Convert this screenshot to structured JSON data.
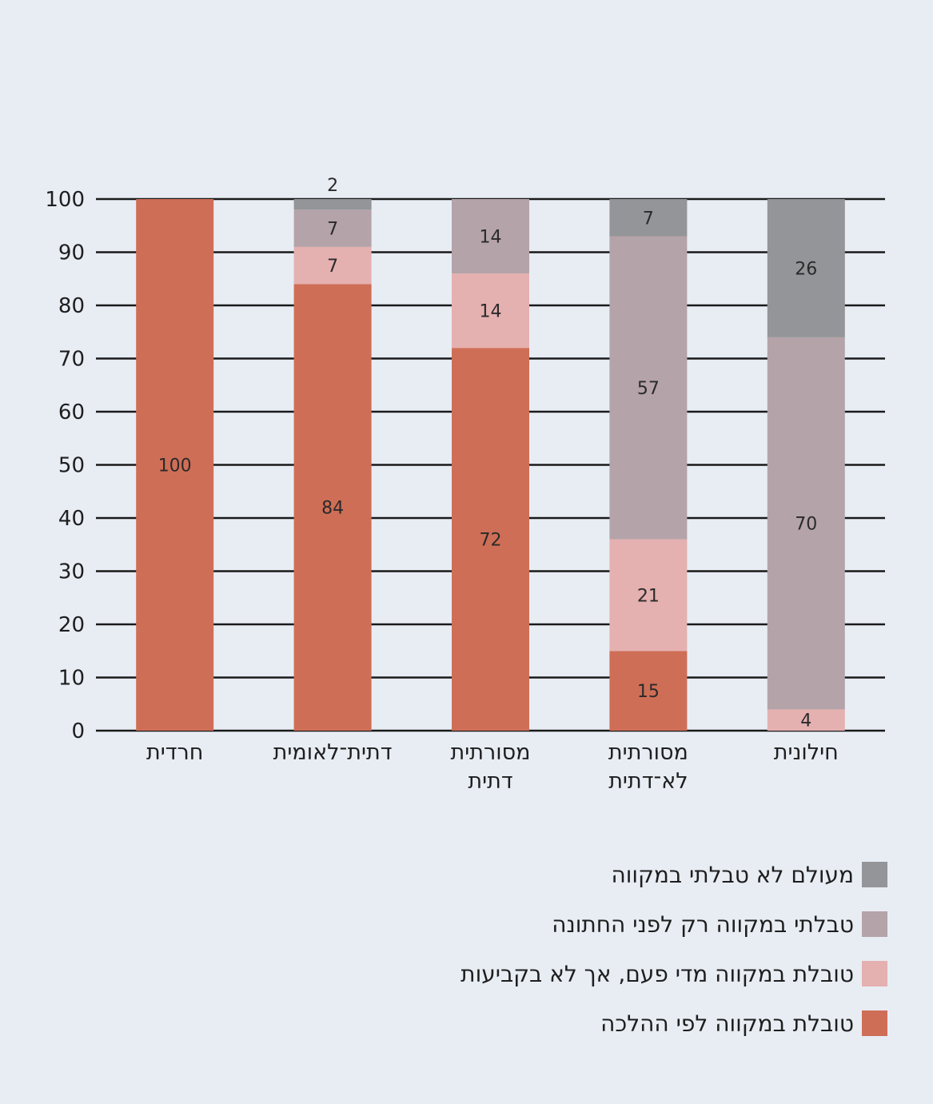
{
  "chart_data": {
    "type": "bar",
    "stacked": true,
    "categories": [
      "חרדית",
      "דתית־לאומית",
      "מסורתית דתית",
      "מסורתית לא־דתית",
      "חילונית"
    ],
    "category_lines": [
      [
        "חרדית"
      ],
      [
        "דתית־לאומית"
      ],
      [
        "מסורתית",
        "דתית"
      ],
      [
        "מסורתית",
        "לא־דתית"
      ],
      [
        "חילונית"
      ]
    ],
    "series": [
      {
        "name": "טובלת במקווה לפי ההלכה",
        "color": "#cf6e56",
        "values": [
          100,
          84,
          72,
          15,
          0
        ]
      },
      {
        "name": "טובלת במקווה מדי פעם, אך לא בקביעות",
        "color": "#e5b0b0",
        "values": [
          0,
          7,
          14,
          21,
          4
        ]
      },
      {
        "name": "טבלתי במקווה רק לפני החתונה",
        "color": "#b4a3a8",
        "values": [
          0,
          7,
          14,
          57,
          70
        ]
      },
      {
        "name": "מעולם לא טבלתי במקווה",
        "color": "#939598",
        "values": [
          0,
          2,
          0,
          7,
          26
        ]
      }
    ],
    "ylim": [
      0,
      100
    ],
    "yticks": [
      "0",
      "10",
      "20",
      "30",
      "40",
      "50",
      "60",
      "70",
      "80",
      "90",
      "100"
    ],
    "grid": true,
    "legend_position": "bottom-right",
    "legend_order": [
      3,
      2,
      1,
      0
    ]
  }
}
